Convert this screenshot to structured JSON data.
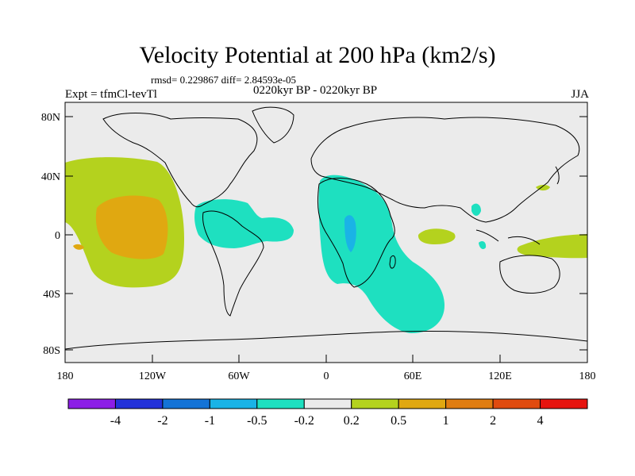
{
  "title": "Velocity Potential at 200 hPa (km2/s)",
  "stats": "rmsd= 0.229867 diff= 2.84593e-05",
  "experiment": "Expt = tfmCl-tevTl",
  "period": "0220kyr BP - 0220kyr BP",
  "season": "JJA",
  "map": {
    "lon_ticks": [
      "180",
      "120W",
      "60W",
      "0",
      "60E",
      "120E",
      "180"
    ],
    "lat_ticks": [
      "80N",
      "40N",
      "0",
      "40S",
      "80S"
    ]
  },
  "colorbar": {
    "labels": [
      "-4",
      "-2",
      "-1",
      "-0.5",
      "-0.2",
      "0.2",
      "0.5",
      "1",
      "2",
      "4"
    ],
    "colors": [
      "#8c1ee6",
      "#2332d9",
      "#1473d6",
      "#1ab3e6",
      "#1ee0c0",
      "#ebebeb",
      "#b4d21e",
      "#e0a811",
      "#e07d11",
      "#e04b0f",
      "#e6140f"
    ]
  },
  "colors": {
    "ocean_background": "#ebebeb",
    "positive_light": "#b4d21e",
    "positive_mid": "#e0a811",
    "negative_light": "#1ee0c0",
    "negative_mid": "#1ab3e6"
  }
}
